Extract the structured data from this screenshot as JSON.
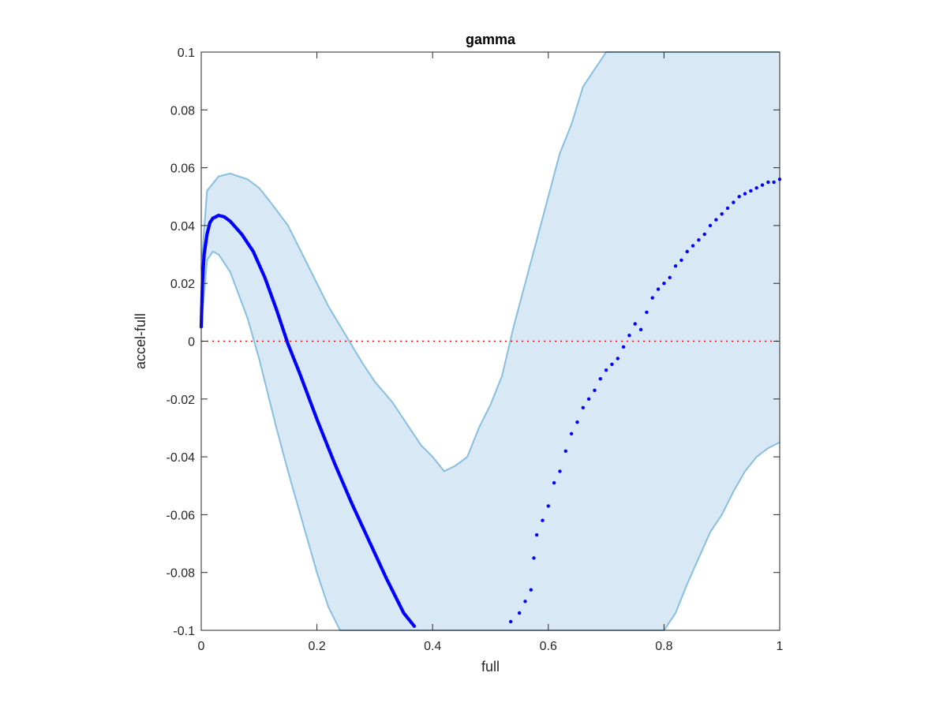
{
  "chart_data": {
    "type": "scatter",
    "title": "gamma",
    "xlabel": "full",
    "ylabel": "accel-full",
    "xlim": [
      0,
      1
    ],
    "ylim": [
      -0.1,
      0.1
    ],
    "xticks": [
      0,
      0.2,
      0.4,
      0.6,
      0.8,
      1
    ],
    "xtick_labels": [
      "0",
      "0.2",
      "0.4",
      "0.6",
      "0.8",
      "1"
    ],
    "yticks": [
      -0.1,
      -0.08,
      -0.06,
      -0.04,
      -0.02,
      0,
      0.02,
      0.04,
      0.06,
      0.08,
      0.1
    ],
    "ytick_labels": [
      "-0.1",
      "-0.08",
      "-0.06",
      "-0.04",
      "-0.02",
      "0",
      "0.02",
      "0.04",
      "0.06",
      "0.08",
      "0.1"
    ],
    "grid": false,
    "reference_line": {
      "y": 0,
      "style": "dotted",
      "color": "#ff0000"
    },
    "band": {
      "fill_color": "#d9e8f5",
      "line_color": "#88bfdf",
      "upper": [
        [
          0,
          0.025
        ],
        [
          0.01,
          0.052
        ],
        [
          0.03,
          0.057
        ],
        [
          0.05,
          0.058
        ],
        [
          0.08,
          0.056
        ],
        [
          0.1,
          0.053
        ],
        [
          0.12,
          0.048
        ],
        [
          0.15,
          0.04
        ],
        [
          0.18,
          0.028
        ],
        [
          0.2,
          0.02
        ],
        [
          0.22,
          0.012
        ],
        [
          0.25,
          0.002
        ],
        [
          0.28,
          -0.008
        ],
        [
          0.3,
          -0.014
        ],
        [
          0.33,
          -0.021
        ],
        [
          0.36,
          -0.03
        ],
        [
          0.38,
          -0.036
        ],
        [
          0.4,
          -0.04
        ],
        [
          0.42,
          -0.045
        ],
        [
          0.44,
          -0.043
        ],
        [
          0.46,
          -0.04
        ],
        [
          0.48,
          -0.03
        ],
        [
          0.5,
          -0.022
        ],
        [
          0.52,
          -0.012
        ],
        [
          0.54,
          0.005
        ],
        [
          0.56,
          0.02
        ],
        [
          0.58,
          0.035
        ],
        [
          0.6,
          0.05
        ],
        [
          0.62,
          0.065
        ],
        [
          0.64,
          0.075
        ],
        [
          0.66,
          0.088
        ],
        [
          0.68,
          0.094
        ],
        [
          0.7,
          0.1
        ],
        [
          1,
          0.1
        ]
      ],
      "lower": [
        [
          0,
          0.005
        ],
        [
          0.01,
          0.028
        ],
        [
          0.02,
          0.031
        ],
        [
          0.03,
          0.03
        ],
        [
          0.05,
          0.024
        ],
        [
          0.08,
          0.008
        ],
        [
          0.1,
          -0.006
        ],
        [
          0.13,
          -0.03
        ],
        [
          0.15,
          -0.045
        ],
        [
          0.18,
          -0.066
        ],
        [
          0.2,
          -0.08
        ],
        [
          0.22,
          -0.092
        ],
        [
          0.24,
          -0.1
        ],
        [
          0.8,
          -0.1
        ],
        [
          0.82,
          -0.094
        ],
        [
          0.84,
          -0.084
        ],
        [
          0.86,
          -0.075
        ],
        [
          0.88,
          -0.066
        ],
        [
          0.9,
          -0.06
        ],
        [
          0.92,
          -0.052
        ],
        [
          0.94,
          -0.045
        ],
        [
          0.96,
          -0.04
        ],
        [
          0.98,
          -0.037
        ],
        [
          1,
          -0.035
        ]
      ]
    },
    "series": [
      {
        "color": "#0000ff",
        "curve": [
          [
            0,
            0.005
          ],
          [
            0.002,
            0.02
          ],
          [
            0.005,
            0.03
          ],
          [
            0.01,
            0.037
          ],
          [
            0.015,
            0.041
          ],
          [
            0.02,
            0.0425
          ],
          [
            0.03,
            0.0435
          ],
          [
            0.04,
            0.043
          ],
          [
            0.05,
            0.0415
          ],
          [
            0.07,
            0.037
          ],
          [
            0.09,
            0.031
          ],
          [
            0.11,
            0.022
          ],
          [
            0.13,
            0.011
          ],
          [
            0.15,
            -0.001
          ],
          [
            0.17,
            -0.011
          ],
          [
            0.2,
            -0.027
          ],
          [
            0.23,
            -0.042
          ],
          [
            0.26,
            -0.056
          ],
          [
            0.29,
            -0.069
          ],
          [
            0.32,
            -0.082
          ],
          [
            0.35,
            -0.094
          ],
          [
            0.37,
            -0.099
          ]
        ],
        "scatter": [
          [
            0.535,
            -0.097
          ],
          [
            0.55,
            -0.094
          ],
          [
            0.56,
            -0.09
          ],
          [
            0.57,
            -0.086
          ],
          [
            0.575,
            -0.075
          ],
          [
            0.58,
            -0.067
          ],
          [
            0.59,
            -0.062
          ],
          [
            0.6,
            -0.057
          ],
          [
            0.61,
            -0.049
          ],
          [
            0.62,
            -0.045
          ],
          [
            0.63,
            -0.038
          ],
          [
            0.64,
            -0.032
          ],
          [
            0.65,
            -0.028
          ],
          [
            0.66,
            -0.023
          ],
          [
            0.67,
            -0.02
          ],
          [
            0.68,
            -0.017
          ],
          [
            0.69,
            -0.013
          ],
          [
            0.7,
            -0.01
          ],
          [
            0.71,
            -0.008
          ],
          [
            0.72,
            -0.006
          ],
          [
            0.73,
            -0.002
          ],
          [
            0.74,
            0.002
          ],
          [
            0.75,
            0.006
          ],
          [
            0.76,
            0.004
          ],
          [
            0.77,
            0.01
          ],
          [
            0.78,
            0.015
          ],
          [
            0.79,
            0.018
          ],
          [
            0.8,
            0.02
          ],
          [
            0.81,
            0.022
          ],
          [
            0.82,
            0.026
          ],
          [
            0.83,
            0.028
          ],
          [
            0.84,
            0.031
          ],
          [
            0.85,
            0.033
          ],
          [
            0.86,
            0.035
          ],
          [
            0.87,
            0.037
          ],
          [
            0.88,
            0.04
          ],
          [
            0.89,
            0.042
          ],
          [
            0.9,
            0.044
          ],
          [
            0.91,
            0.046
          ],
          [
            0.92,
            0.048
          ],
          [
            0.93,
            0.05
          ],
          [
            0.94,
            0.051
          ],
          [
            0.95,
            0.052
          ],
          [
            0.96,
            0.053
          ],
          [
            0.97,
            0.054
          ],
          [
            0.98,
            0.055
          ],
          [
            0.99,
            0.055
          ],
          [
            1.0,
            0.056
          ]
        ]
      }
    ]
  }
}
